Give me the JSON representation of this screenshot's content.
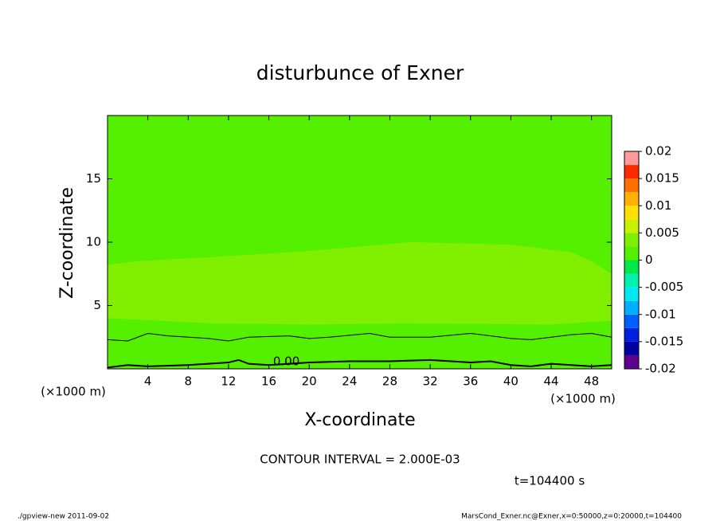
{
  "chart_data": {
    "type": "contour",
    "title": "disturbunce of Exner",
    "xlabel": "X-coordinate",
    "ylabel": "Z-coordinate",
    "x_unit_label": "(×1000 m)",
    "y_unit_label": "(×1000 m)",
    "xlim": [
      0,
      50
    ],
    "ylim": [
      0,
      20
    ],
    "xticks": [
      4,
      8,
      12,
      16,
      20,
      24,
      28,
      32,
      36,
      40,
      44,
      48
    ],
    "yticks": [
      5,
      10,
      15
    ],
    "regions": [
      {
        "color": "#55f000",
        "x": [
          0,
          50,
          50,
          0
        ],
        "z": [
          0,
          0,
          20,
          20
        ]
      },
      {
        "color": "#80f000",
        "x": [
          0,
          3,
          10,
          20,
          30,
          40,
          46,
          48,
          50,
          50,
          44,
          30,
          20,
          10,
          0
        ],
        "z": [
          8.2,
          8.5,
          8.8,
          9.3,
          10,
          9.8,
          9.2,
          8.5,
          7.5,
          3.8,
          3.5,
          3.6,
          3.5,
          3.6,
          4
        ]
      }
    ],
    "contours": [
      {
        "level": 0.002,
        "x": [
          0,
          2,
          4,
          6,
          10,
          12,
          14,
          18,
          20,
          22,
          26,
          28,
          32,
          36,
          40,
          42,
          46,
          48,
          50
        ],
        "z": [
          2.3,
          2.2,
          2.8,
          2.6,
          2.4,
          2.2,
          2.5,
          2.6,
          2.4,
          2.5,
          2.8,
          2.5,
          2.5,
          2.8,
          2.4,
          2.3,
          2.7,
          2.8,
          2.5
        ]
      },
      {
        "level": 0,
        "value_label": "0.00",
        "x": [
          0,
          2,
          4,
          8,
          12,
          13,
          14,
          16,
          20,
          24,
          28,
          32,
          36,
          38,
          40,
          42,
          44,
          48,
          50
        ],
        "z": [
          0.1,
          0.3,
          0.2,
          0.3,
          0.5,
          0.7,
          0.4,
          0.3,
          0.5,
          0.6,
          0.6,
          0.7,
          0.5,
          0.6,
          0.3,
          0.2,
          0.4,
          0.2,
          0.3
        ]
      }
    ],
    "colorbar": {
      "levels": [
        -0.02,
        -0.0175,
        -0.015,
        -0.0125,
        -0.01,
        -0.0075,
        -0.005,
        -0.0025,
        0,
        0.0025,
        0.005,
        0.0075,
        0.01,
        0.0125,
        0.015,
        0.0175,
        0.02
      ],
      "colors": [
        "#600090",
        "#0000a0",
        "#0020e0",
        "#0060ff",
        "#00b0ff",
        "#00e8f0",
        "#00f0b0",
        "#00e84a",
        "#55f000",
        "#80f000",
        "#c8f000",
        "#ffe000",
        "#ffb000",
        "#ff7000",
        "#ff2a00",
        "#ff9a9a"
      ],
      "ticks": [
        0.02,
        0.015,
        0.01,
        0.005,
        0,
        -0.005,
        -0.01,
        -0.015,
        -0.02
      ]
    },
    "contour_interval": "CONTOUR INTERVAL = 2.000E-03",
    "time_label": "t=104400 s",
    "footer_left": "./gpview-new  2011-09-02",
    "footer_right": "MarsCond_Exner.nc@Exner,x=0:50000,z=0:20000,t=104400"
  }
}
